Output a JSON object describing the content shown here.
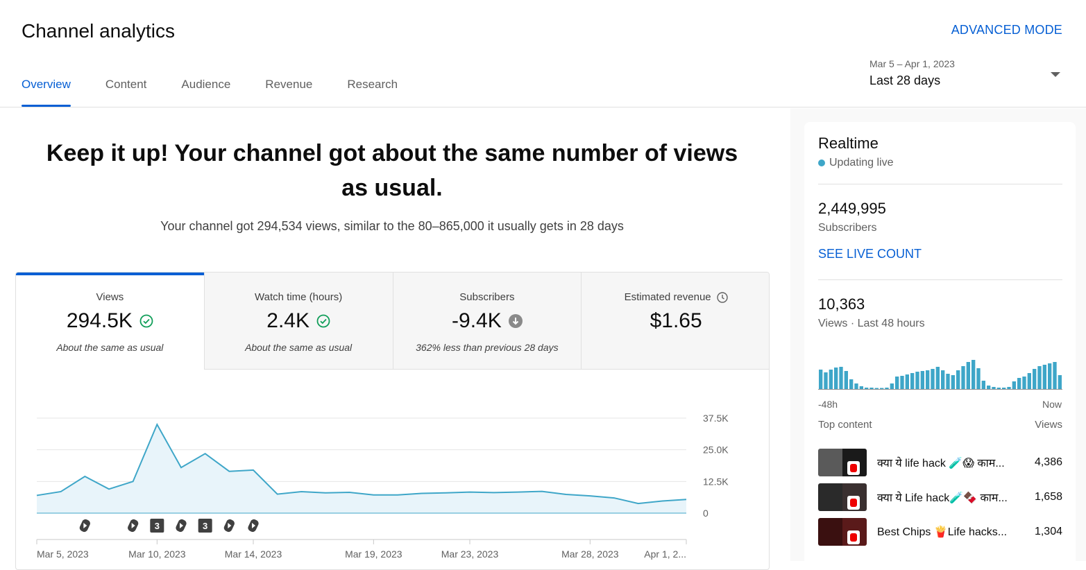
{
  "header": {
    "title": "Channel analytics",
    "advanced_mode": "ADVANCED MODE",
    "tabs": [
      "Overview",
      "Content",
      "Audience",
      "Revenue",
      "Research"
    ],
    "active_tab": "Overview",
    "date_range": {
      "dates": "Mar 5 – Apr 1, 2023",
      "label": "Last 28 days"
    }
  },
  "summary": {
    "headline": "Keep it up! Your channel got about the same number of views as usual.",
    "subline": "Your channel got 294,534 views, similar to the 80–865,000 it usually gets in 28 days"
  },
  "metrics": [
    {
      "label": "Views",
      "value": "294.5K",
      "note": "About the same as usual",
      "icon": "check-circle-icon"
    },
    {
      "label": "Watch time (hours)",
      "value": "2.4K",
      "note": "About the same as usual",
      "icon": "check-circle-icon"
    },
    {
      "label": "Subscribers",
      "value": "-9.4K",
      "note": "362% less than previous 28 days",
      "icon": "arrow-down-circle-icon"
    },
    {
      "label": "Estimated revenue",
      "value": "$1.65",
      "note": "",
      "icon": "clock-icon"
    }
  ],
  "chart_data": {
    "type": "area",
    "series": [
      {
        "values": [
          7000,
          8500,
          14500,
          9500,
          12500,
          35000,
          18000,
          23500,
          16500,
          17000,
          7500,
          8500,
          8000,
          8200,
          7200,
          7200,
          7800,
          8000,
          8300,
          8100,
          8300,
          8600,
          7400,
          6800,
          6000,
          3800,
          4800,
          5400
        ]
      }
    ],
    "ylim": [
      0,
      37500
    ],
    "y_ticks": [
      "0",
      "12.5K",
      "25.0K",
      "37.5K"
    ],
    "x_ticks": [
      {
        "label": "Mar 5, 2023",
        "index": 0
      },
      {
        "label": "Mar 10, 2023",
        "index": 5
      },
      {
        "label": "Mar 14, 2023",
        "index": 9
      },
      {
        "label": "Mar 19, 2023",
        "index": 14
      },
      {
        "label": "Mar 23, 2023",
        "index": 18
      },
      {
        "label": "Mar 28, 2023",
        "index": 23
      },
      {
        "label": "Apr 1, 2...",
        "index": 27
      }
    ],
    "markers": [
      {
        "index": 2,
        "kind": "shorts"
      },
      {
        "index": 4,
        "kind": "shorts"
      },
      {
        "index": 5,
        "kind": "count",
        "text": "3"
      },
      {
        "index": 6,
        "kind": "shorts"
      },
      {
        "index": 7,
        "kind": "count",
        "text": "3"
      },
      {
        "index": 8,
        "kind": "shorts"
      },
      {
        "index": 9,
        "kind": "shorts"
      }
    ],
    "color": "#3ea6c8",
    "fill": "#e8f4fa"
  },
  "realtime": {
    "title": "Realtime",
    "status": "Updating live",
    "subscribers_value": "2,449,995",
    "subscribers_label": "Subscribers",
    "live_count_link": "SEE LIVE COUNT",
    "views_value": "10,363",
    "views_label": "Views · Last 48 hours",
    "axis_start": "-48h",
    "axis_end": "Now",
    "hourly_views": [
      28,
      24,
      28,
      31,
      32,
      26,
      14,
      8,
      4,
      2,
      2,
      1,
      1,
      2,
      8,
      18,
      19,
      21,
      23,
      25,
      26,
      27,
      29,
      32,
      27,
      22,
      20,
      27,
      33,
      39,
      42,
      30,
      12,
      5,
      3,
      2,
      2,
      3,
      11,
      16,
      18,
      23,
      29,
      33,
      35,
      37,
      39,
      20
    ],
    "top_content_label": "Top content",
    "views_col": "Views",
    "top_content": [
      {
        "title": "क्या ये life hack 🧪😱 काम...",
        "views": "4,386",
        "thumb_left": "#5a5a5a",
        "thumb_right": "#1a1a1a"
      },
      {
        "title": "क्या ये Life hack🧪🍫 काम...",
        "views": "1,658",
        "thumb_left": "#2a2a2a",
        "thumb_right": "#3a3030"
      },
      {
        "title": "Best Chips 🍟Life hacks...",
        "views": "1,304",
        "thumb_left": "#3a1010",
        "thumb_right": "#5a1a1a"
      }
    ]
  },
  "colors": {
    "accent": "#065fd4",
    "chart": "#3ea6c8",
    "positive": "#0f9d58"
  }
}
